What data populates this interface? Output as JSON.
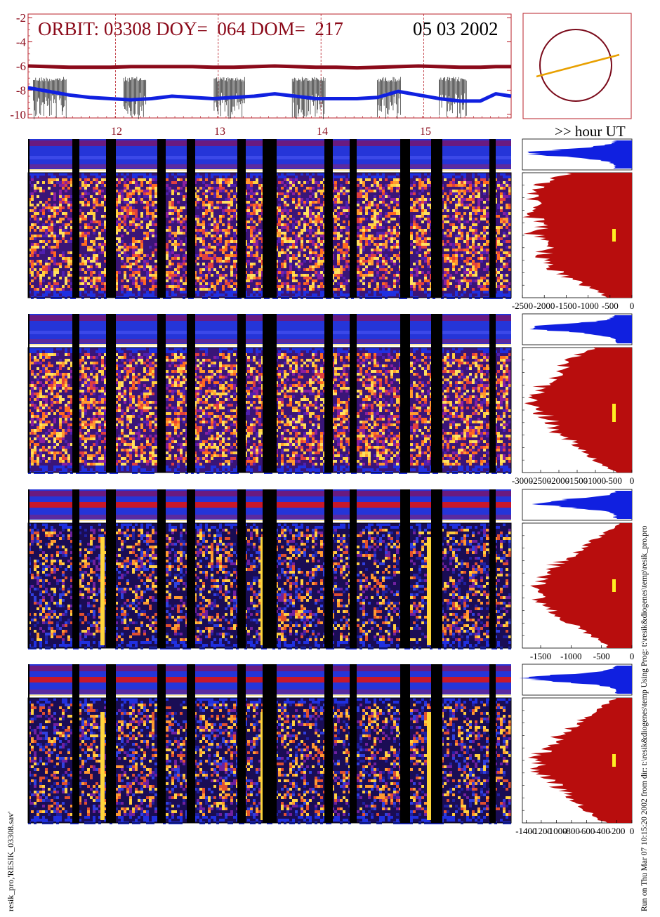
{
  "header": {
    "orbit_text": "ORBIT: 03308 DOY=  064 DOM=  217",
    "date_text": "05 03 2002"
  },
  "top_plot": {
    "y_ticks": [
      "-2",
      "-4",
      "-6",
      "-8",
      "-10"
    ],
    "ylim": [
      -10.3,
      -1.7
    ],
    "xlim": [
      11.15,
      15.85
    ],
    "hour_lines": [
      12,
      13,
      14,
      15
    ]
  },
  "hour_axis": {
    "labels": [
      "12",
      "13",
      "14",
      "15"
    ],
    "unit_label": ">> hour UT"
  },
  "spectrograms": [
    {
      "id": 1,
      "profile_ticks": [
        "-2500",
        "-2000",
        "-1500",
        "-1000",
        "-500",
        "0"
      ],
      "profile_range": [
        -2500,
        0
      ]
    },
    {
      "id": 2,
      "profile_ticks": [
        "-3000",
        "-2500",
        "-2000",
        "-1500",
        "-1000",
        "-500",
        "0"
      ],
      "profile_range": [
        -3000,
        0
      ]
    },
    {
      "id": 3,
      "profile_ticks": [
        "-1500",
        "-1000",
        "-500",
        "0"
      ],
      "profile_range": [
        -1800,
        0
      ]
    },
    {
      "id": 4,
      "profile_ticks": [
        "-1400",
        "-1200",
        "-1000",
        "-800",
        "-600",
        "-400",
        "-200",
        "0"
      ],
      "profile_range": [
        -1450,
        0
      ]
    }
  ],
  "footer": {
    "left_vertical": "resik_pro,'RESIK_03308.sav'",
    "right_vertical": "Run on Thu Mar 07 10:15:20 2002  from dir: t:\\resik&diogenes\\temp Using Prog: t:\\resik&diogenes\\temp\\resik_pro.pro"
  },
  "chart_data": [
    {
      "type": "line",
      "series": [
        {
          "values": [
            -6.0,
            -6.05,
            -6.1,
            -6.1,
            -6.1,
            -6.05,
            -6.05,
            -6.05,
            -6.05,
            -6.1,
            -6.1,
            -6.05,
            -6.0,
            -6.05,
            -6.1,
            -6.1,
            -6.15,
            -6.1,
            -6.05,
            -6.0,
            -6.05,
            -6.1,
            -6.1,
            -6.05,
            -6.05
          ]
        },
        {
          "values": [
            -7.8,
            -8.1,
            -8.4,
            -8.6,
            -8.7,
            -8.8,
            -8.7,
            -8.5,
            -8.6,
            -8.7,
            -8.6,
            -8.5,
            -8.3,
            -8.5,
            -8.7,
            -8.7,
            -8.7,
            -8.6,
            -8.1,
            -8.4,
            -8.7,
            -8.9,
            -8.9,
            -8.3,
            -8.5
          ]
        }
      ],
      "x": [
        11.15,
        11.35,
        11.55,
        11.75,
        11.95,
        12.15,
        12.35,
        12.55,
        12.75,
        12.95,
        13.15,
        13.35,
        13.55,
        13.75,
        13.95,
        14.15,
        14.35,
        14.55,
        14.75,
        14.95,
        15.15,
        15.35,
        15.55,
        15.7,
        15.85
      ],
      "ylim": [
        -10.3,
        -1.7
      ],
      "grid": false
    },
    {
      "type": "heatmap",
      "panel": 1
    },
    {
      "type": "area",
      "panel": 1,
      "range": [
        -2500,
        0
      ]
    },
    {
      "type": "heatmap",
      "panel": 2
    },
    {
      "type": "area",
      "panel": 2,
      "range": [
        -3000,
        0
      ]
    },
    {
      "type": "heatmap",
      "panel": 3
    },
    {
      "type": "area",
      "panel": 3,
      "range": [
        -1800,
        0
      ]
    },
    {
      "type": "heatmap",
      "panel": 4
    },
    {
      "type": "area",
      "panel": 4,
      "range": [
        -1450,
        0
      ]
    }
  ],
  "colors": {
    "dark_red": "#8b0a1a",
    "blue": "#1020e0",
    "red_fill": "#b80d0d",
    "orange": "#e8a000",
    "yellow": "#ffee22",
    "black": "#000000"
  }
}
